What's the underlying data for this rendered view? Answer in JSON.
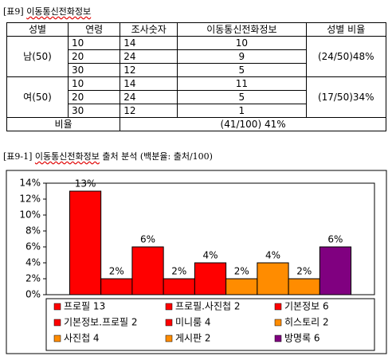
{
  "table_caption": {
    "label": "[표9]",
    "title": "이동통신전화정보"
  },
  "table": {
    "header": [
      "성별",
      "연령",
      "조사숫자",
      "이동통신전화정보",
      "성별 비율"
    ],
    "groups": [
      {
        "gender": "남(50)",
        "ratio": "(24/50)48%",
        "rows": [
          [
            10,
            14,
            10
          ],
          [
            20,
            24,
            9
          ],
          [
            30,
            12,
            5
          ]
        ]
      },
      {
        "gender": "여(50)",
        "ratio": "(17/50)34%",
        "rows": [
          [
            10,
            14,
            11
          ],
          [
            20,
            24,
            5
          ],
          [
            30,
            12,
            1
          ]
        ]
      }
    ],
    "total": {
      "label": "비율",
      "value": "(41/100) 41%"
    }
  },
  "chart_caption": {
    "label": "[표9-1]",
    "title": "이동통신전화정보",
    "subtitle": "출처 분석 (백분율: 출처/100)"
  },
  "chart_data": {
    "type": "bar",
    "categories": [
      "프로필 13",
      "프로필.사진첩 2",
      "기본정보 6",
      "기본정보.프로필 2",
      "미니룸 4",
      "히스토리 2",
      "사진첩 4",
      "게시판 2",
      "방명록 6"
    ],
    "values": [
      13,
      2,
      6,
      2,
      4,
      2,
      4,
      2,
      6
    ],
    "value_labels": [
      "13%",
      "2%",
      "6%",
      "2%",
      "4%",
      "2%",
      "4%",
      "2%",
      "6%"
    ],
    "colors": [
      "#ff0000",
      "#ff0000",
      "#ff0000",
      "#ff0000",
      "#ff0000",
      "#ff8c00",
      "#ff8c00",
      "#ff8c00",
      "#800080"
    ],
    "ylim": [
      0,
      14
    ],
    "yticks": [
      {
        "value": 0,
        "label": "0%"
      },
      {
        "value": 2,
        "label": "2%"
      },
      {
        "value": 4,
        "label": "4%"
      },
      {
        "value": 6,
        "label": "6%"
      },
      {
        "value": 8,
        "label": "8%"
      },
      {
        "value": 10,
        "label": "10%"
      },
      {
        "value": 12,
        "label": "12%"
      },
      {
        "value": 14,
        "label": "14%"
      }
    ]
  }
}
